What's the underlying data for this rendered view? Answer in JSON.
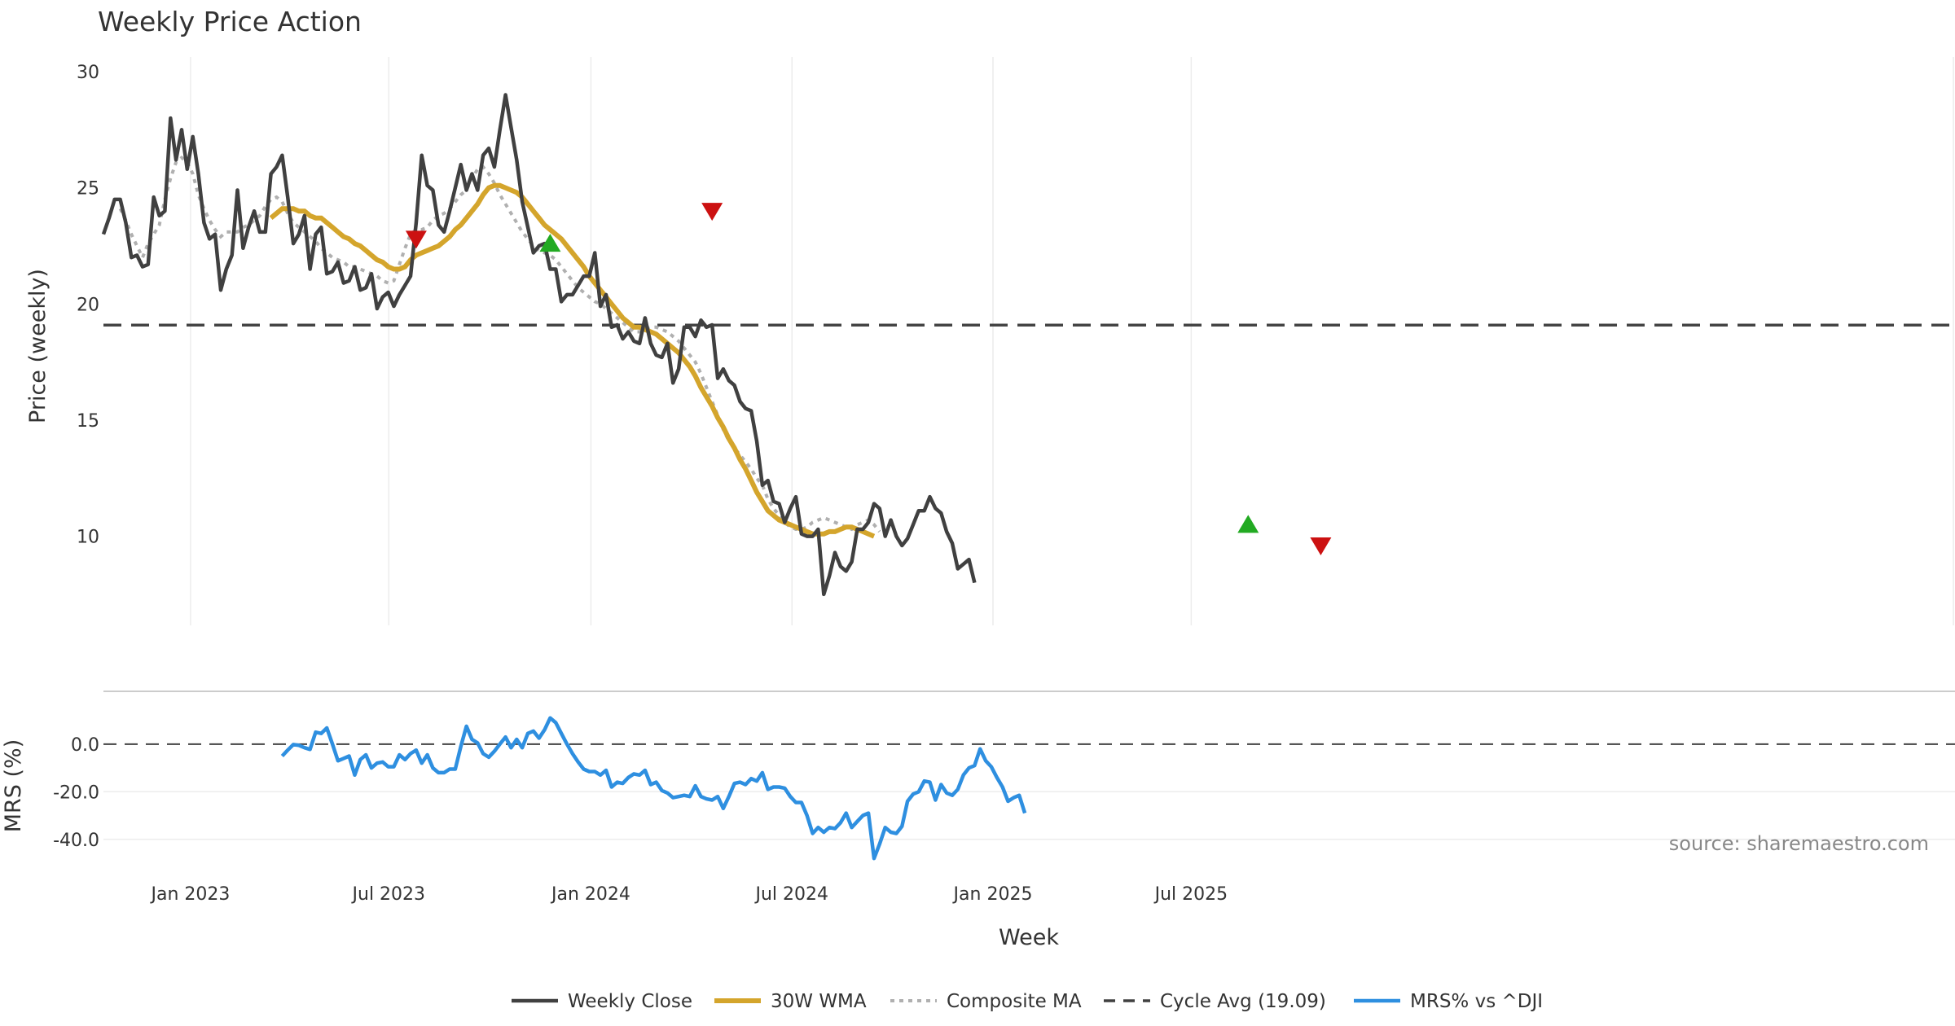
{
  "chart_data": {
    "type": "line",
    "title": "Weekly Price Action",
    "xlabel": "Week",
    "x_ticks": [
      "Jan 2023",
      "Jul 2023",
      "Jan 2024",
      "Jul 2024",
      "Jan 2025",
      "Jul 2025"
    ],
    "price_panel": {
      "ylabel": "Price (weekly)",
      "ylim": [
        6.2,
        30
      ],
      "y_ticks": [
        "30",
        "25",
        "20",
        "15",
        "10"
      ],
      "grid": true
    },
    "mrs_panel": {
      "ylabel": "MRS (%)",
      "ylim": [
        -50,
        15
      ],
      "y_ticks": [
        "0.0",
        "-20.0",
        "-40.0"
      ],
      "zero_line": true
    },
    "cycle_avg": 19.09,
    "series": [
      {
        "name": "Weekly Close",
        "color": "#404040",
        "start_week": 0,
        "values": [
          23.0,
          23.7,
          24.5,
          24.5,
          23.5,
          22.0,
          22.1,
          21.6,
          21.7,
          24.6,
          23.8,
          24.0,
          28.0,
          26.2,
          27.5,
          25.8,
          27.2,
          25.6,
          23.5,
          22.8,
          23.0,
          20.6,
          21.5,
          22.1,
          24.9,
          22.4,
          23.3,
          24.0,
          23.1,
          23.1,
          25.6,
          25.9,
          26.4,
          24.6,
          22.6,
          23.0,
          23.8,
          21.5,
          23.0,
          23.3,
          21.3,
          21.4,
          21.8,
          20.9,
          21.0,
          21.6,
          20.6,
          20.7,
          21.3,
          19.8,
          20.3,
          20.5,
          19.9,
          20.4,
          20.8,
          21.2,
          23.5,
          26.4,
          25.1,
          24.9,
          23.4,
          23.1,
          24.0,
          25.0,
          26.0,
          24.9,
          25.6,
          24.9,
          26.4,
          26.7,
          25.9,
          27.5,
          29.0,
          27.6,
          26.2,
          24.4,
          23.3,
          22.2,
          22.5,
          22.6,
          21.5,
          21.5,
          20.1,
          20.4,
          20.4,
          20.8,
          21.2,
          21.2,
          22.2,
          19.9,
          20.4,
          19.0,
          19.1,
          18.5,
          18.8,
          18.4,
          18.3,
          19.4,
          18.3,
          17.8,
          17.7,
          18.3,
          16.6,
          17.2,
          19.0,
          19.0,
          18.6,
          19.3,
          19.0,
          19.1,
          16.8,
          17.2,
          16.7,
          16.5,
          15.8,
          15.5,
          15.4,
          14.1,
          12.2,
          12.4,
          11.5,
          11.4,
          10.6,
          11.2,
          11.7,
          10.1,
          10.0,
          10.0,
          10.3,
          7.5,
          8.3,
          9.3,
          8.7,
          8.5,
          8.9,
          10.3,
          10.3,
          10.6,
          11.4,
          11.2,
          10.0,
          10.7,
          10.0,
          9.6,
          9.9,
          10.5,
          11.1,
          11.1,
          11.7,
          11.2,
          11.0,
          10.2,
          9.7,
          8.6,
          8.8,
          9.0,
          8.0
        ]
      },
      {
        "name": "30W WMA",
        "color": "#d4a52c",
        "start_week": 30,
        "values": [
          23.7,
          23.9,
          24.1,
          24.1,
          24.1,
          24.0,
          24.0,
          23.8,
          23.7,
          23.7,
          23.5,
          23.3,
          23.1,
          22.9,
          22.8,
          22.6,
          22.5,
          22.3,
          22.1,
          21.9,
          21.8,
          21.6,
          21.5,
          21.5,
          21.6,
          21.9,
          22.1,
          22.2,
          22.3,
          22.4,
          22.5,
          22.7,
          22.9,
          23.2,
          23.4,
          23.7,
          24.0,
          24.3,
          24.7,
          25.0,
          25.1,
          25.1,
          25.0,
          24.9,
          24.8,
          24.6,
          24.3,
          24.0,
          23.7,
          23.4,
          23.2,
          23.0,
          22.8,
          22.5,
          22.2,
          21.9,
          21.6,
          21.2,
          20.9,
          20.6,
          20.3,
          20.0,
          19.7,
          19.4,
          19.2,
          19.0,
          19.0,
          18.9,
          18.8,
          18.7,
          18.5,
          18.3,
          18.1,
          17.9,
          17.6,
          17.3,
          16.9,
          16.4,
          16.0,
          15.6,
          15.1,
          14.7,
          14.2,
          13.8,
          13.3,
          12.9,
          12.4,
          11.9,
          11.5,
          11.1,
          10.9,
          10.7,
          10.6,
          10.5,
          10.4,
          10.3,
          10.2,
          10.1,
          10.1,
          10.1,
          10.2,
          10.2,
          10.3,
          10.4,
          10.4,
          10.3,
          10.2,
          10.1,
          10.0
        ]
      },
      {
        "name": "Composite MA",
        "color": "#b0b0b0",
        "start_week": 3,
        "values": [
          24.1,
          23.6,
          23.0,
          22.5,
          22.0,
          22.6,
          23.0,
          23.4,
          24.5,
          25.4,
          26.1,
          26.3,
          26.1,
          25.6,
          24.7,
          24.1,
          23.6,
          23.2,
          22.9,
          23.1,
          23.1,
          23.1,
          23.3,
          23.4,
          23.6,
          23.8,
          24.2,
          24.5,
          24.6,
          24.4,
          23.9,
          23.5,
          23.3,
          23.1,
          22.9,
          22.7,
          22.4,
          22.2,
          22.0,
          21.9,
          21.8,
          21.6,
          21.6,
          21.5,
          21.4,
          21.3,
          21.2,
          21.0,
          20.9,
          21.0,
          21.7,
          22.4,
          23.0,
          23.2,
          23.2,
          23.3,
          23.6,
          23.8,
          23.9,
          24.1,
          24.4,
          24.7,
          24.9,
          25.4,
          25.8,
          25.9,
          25.6,
          25.2,
          24.7,
          24.3,
          23.9,
          23.5,
          23.1,
          22.8,
          22.5,
          22.3,
          22.2,
          22.1,
          21.9,
          21.6,
          21.3,
          21.0,
          20.7,
          20.5,
          20.3,
          20.1,
          20.0,
          19.8,
          19.6,
          19.4,
          19.2,
          19.0,
          18.8,
          18.8,
          18.9,
          19.0,
          19.0,
          18.9,
          18.8,
          18.6,
          18.4,
          18.1,
          17.8,
          17.5,
          17.0,
          16.4,
          15.8,
          15.2,
          14.6,
          14.1,
          13.8,
          13.5,
          13.2,
          12.9,
          12.5,
          12.2,
          11.6,
          11.2,
          10.9,
          10.6,
          10.4,
          10.3,
          10.3,
          10.4,
          10.6,
          10.7,
          10.8,
          10.7,
          10.6,
          10.5,
          10.4,
          10.3,
          10.5,
          10.6,
          10.7,
          10.5,
          10.2
        ]
      },
      {
        "name": "Cycle Avg (19.09)",
        "color": "#404040",
        "value": 19.09
      },
      {
        "name": "MRS% vs ^DJI",
        "color": "#2e8fe0",
        "start_week": 32,
        "values": [
          -5.0,
          -2.5,
          -0.2,
          -0.5,
          -1.5,
          -2.2,
          5.0,
          4.5,
          6.8,
          0.0,
          -7.0,
          -6.0,
          -5.0,
          -13.0,
          -6.5,
          -4.5,
          -10.0,
          -8.0,
          -7.5,
          -9.5,
          -9.5,
          -4.5,
          -6.5,
          -4.0,
          -2.5,
          -8.0,
          -4.5,
          -10.0,
          -12.0,
          -12.0,
          -10.5,
          -10.5,
          -1.0,
          7.5,
          2.0,
          0.5,
          -4.0,
          -5.5,
          -3.0,
          0.0,
          3.0,
          -1.5,
          2.0,
          -1.5,
          4.5,
          5.5,
          2.5,
          6.0,
          11.0,
          9.0,
          4.5,
          0.0,
          -4.0,
          -7.5,
          -10.5,
          -11.5,
          -11.5,
          -13.0,
          -11.0,
          -18.0,
          -16.0,
          -16.5,
          -14.0,
          -12.5,
          -13.0,
          -11.0,
          -17.0,
          -16.0,
          -19.5,
          -20.5,
          -22.5,
          -22.0,
          -21.5,
          -22.0,
          -17.5,
          -22.0,
          -23.0,
          -23.5,
          -22.0,
          -27.0,
          -22.0,
          -16.5,
          -16.0,
          -17.0,
          -14.5,
          -15.5,
          -12.0,
          -19.0,
          -18.0,
          -18.0,
          -18.5,
          -22.0,
          -24.5,
          -24.5,
          -30.0,
          -37.5,
          -35.0,
          -37.0,
          -35.0,
          -35.5,
          -33.0,
          -29.0,
          -35.0,
          -32.5,
          -30.0,
          -29.0,
          -48.0,
          -42.0,
          -35.0,
          -37.0,
          -37.5,
          -34.5,
          -24.0,
          -21.0,
          -20.0,
          -15.5,
          -16.0,
          -23.5,
          -17.0,
          -20.5,
          -21.5,
          -19.0,
          -13.0,
          -10.0,
          -9.0,
          -2.0,
          -7.0,
          -9.5,
          -14.0,
          -18.0,
          -24.0,
          -22.5,
          -21.5,
          -29.0
        ]
      }
    ],
    "signals": [
      {
        "type": "sell",
        "week": 56,
        "value": 22.8,
        "color": "#cc1111"
      },
      {
        "type": "buy",
        "week": 80,
        "value": 22.6,
        "color": "#22aa22"
      },
      {
        "type": "sell",
        "week": 109,
        "value": 24.0,
        "color": "#cc1111"
      },
      {
        "type": "buy",
        "week": 205,
        "value": 10.5,
        "color": "#22aa22"
      },
      {
        "type": "sell",
        "week": 218,
        "value": 9.6,
        "color": "#cc1111"
      }
    ],
    "legend": {
      "position": "bottom-center",
      "entries": [
        "Weekly Close",
        "30W WMA",
        "Composite MA",
        "Cycle Avg (19.09)",
        "MRS% vs ^DJI"
      ]
    },
    "annotation": "source: sharemaestro.com"
  }
}
